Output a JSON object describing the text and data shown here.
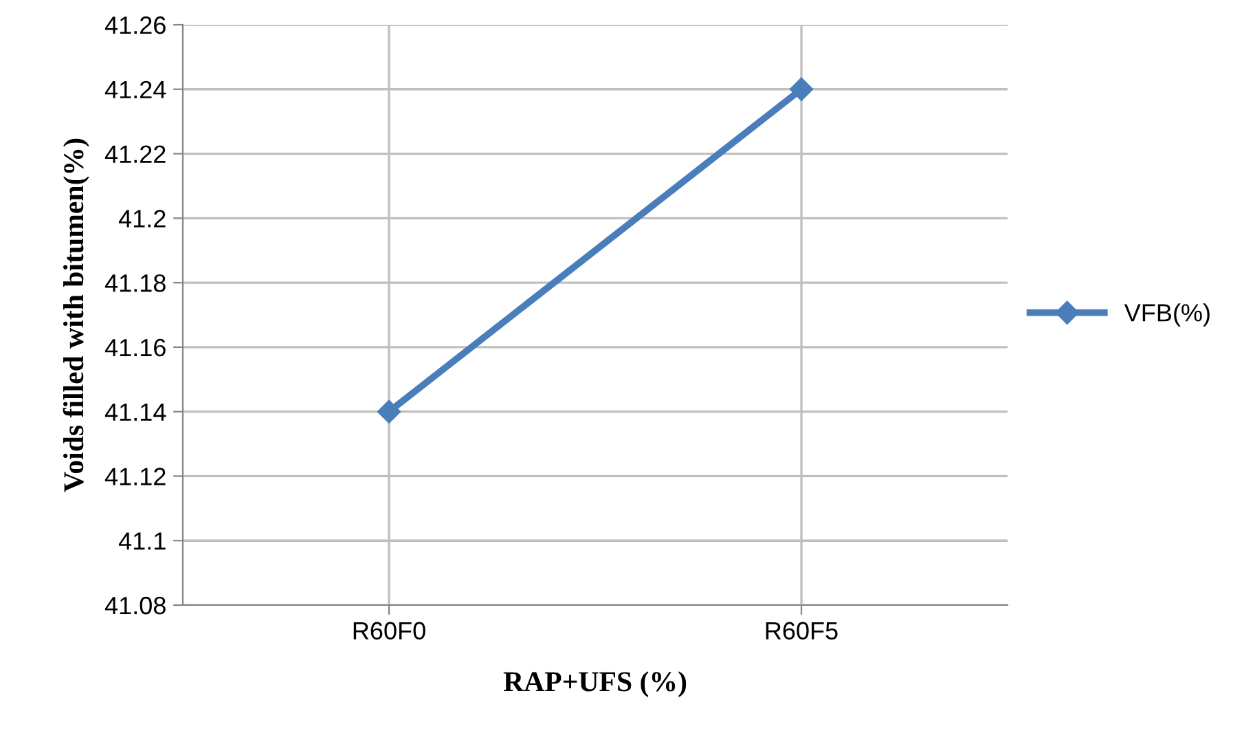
{
  "chart_data": {
    "type": "line",
    "xlabel": "RAP+UFS (%)",
    "ylabel": "Voids filled with bitumen(%)",
    "categories": [
      "R60F0",
      "R60F5"
    ],
    "series": [
      {
        "name": "VFB(%)",
        "color": "#4a7ebb",
        "values": [
          41.14,
          41.24
        ]
      }
    ],
    "ylim": [
      41.08,
      41.26
    ],
    "yticks": [
      41.08,
      41.1,
      41.12,
      41.14,
      41.16,
      41.18,
      41.2,
      41.22,
      41.24,
      41.26
    ],
    "grid": true,
    "legend": "right",
    "marker": "diamond",
    "line_style": "solid"
  }
}
